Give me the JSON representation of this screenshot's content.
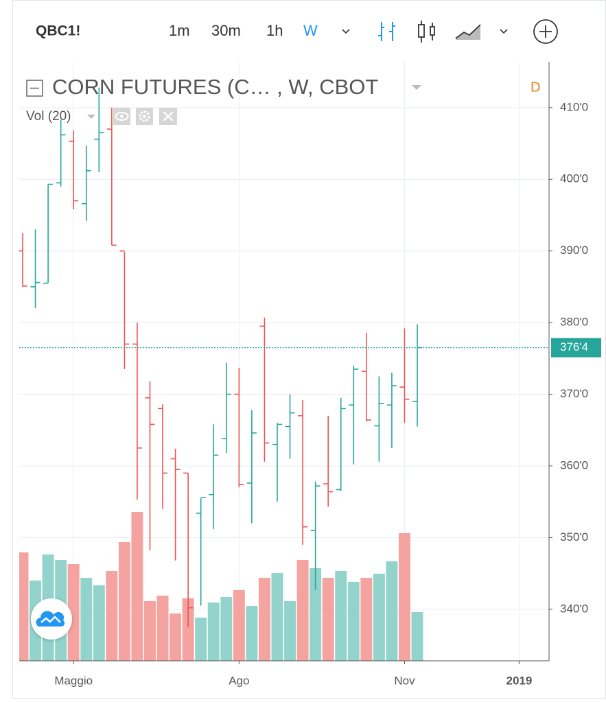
{
  "toolbar": {
    "symbol": "QBC1!",
    "intervals": [
      "1m",
      "30m",
      "1h",
      "W"
    ],
    "active_interval": "W"
  },
  "chart_data": {
    "type": "ohlc",
    "title": "CORN FUTURES (C… , W, CBOT",
    "badge": "D",
    "up_color": "#26a69a",
    "down_color": "#ef5350",
    "up_volume_color": "#92d3cb",
    "down_volume_color": "#f5a3a0",
    "ohlc": {
      "open": [
        390,
        385,
        385.5,
        399.5,
        405.3,
        396.6,
        405.6,
        407,
        390,
        377,
        369.5,
        368,
        361,
        359,
        353.4,
        356,
        363.8,
        370,
        357.6,
        379.5,
        363,
        365.5,
        367,
        351,
        357.5,
        356.7,
        368.5,
        373.2,
        365.6,
        368.5,
        371,
        369
      ],
      "high": [
        392.5,
        393,
        399.3,
        408.3,
        406.8,
        404.7,
        412.8,
        410,
        389.9,
        380,
        371.8,
        368.6,
        362.4,
        359,
        355.5,
        365.8,
        374.4,
        373.7,
        367.8,
        380.7,
        366,
        370,
        369.2,
        357.8,
        367,
        369.5,
        374,
        378.6,
        372.5,
        373,
        379.2,
        379.8
      ],
      "low": [
        385,
        382,
        385.5,
        399,
        395.8,
        394.2,
        401,
        390.8,
        373.5,
        355.3,
        348.2,
        354,
        346.8,
        337.5,
        340.5,
        351.2,
        361.8,
        357,
        352,
        360.6,
        355,
        361,
        349,
        342.7,
        354.3,
        356.5,
        360.2,
        366.2,
        360.6,
        362.5,
        366,
        365.5
      ],
      "close": [
        385.1,
        385.6,
        399.3,
        406.2,
        397,
        401.2,
        406.5,
        390.8,
        377,
        362.5,
        365.8,
        359,
        359.5,
        340.2,
        355.6,
        361.5,
        370,
        357.4,
        364.6,
        363.2,
        365.8,
        367.4,
        351.5,
        357.2,
        356.4,
        368,
        373.5,
        366.4,
        368.7,
        371.2,
        369.3,
        376.5
      ]
    },
    "volume": {
      "name": "Vol (20)",
      "values": [
        158,
        117,
        155,
        147,
        141,
        121,
        110,
        131,
        173,
        217,
        87,
        95,
        69,
        91,
        63,
        85,
        93,
        103,
        80,
        121,
        128,
        87,
        147,
        135,
        121,
        131,
        115,
        121,
        127,
        145,
        186,
        71
      ]
    },
    "last_price": {
      "value": 376.5,
      "label": "376'4"
    },
    "xlim": [
      -0.27,
      41.35
    ],
    "xticks": [
      {
        "value": 4,
        "label": "Maggio"
      },
      {
        "value": 17,
        "label": "Ago"
      },
      {
        "value": 30,
        "label": "Nov"
      },
      {
        "value": 39,
        "label": "2019"
      }
    ],
    "ylim": [
      332.8,
      416.4
    ],
    "yticks": [
      {
        "value": 340,
        "label": "340'0"
      },
      {
        "value": 350,
        "label": "350'0"
      },
      {
        "value": 360,
        "label": "360'0"
      },
      {
        "value": 370,
        "label": "370'0"
      },
      {
        "value": 380,
        "label": "380'0"
      },
      {
        "value": 390,
        "label": "390'0"
      },
      {
        "value": 400,
        "label": "400'0"
      },
      {
        "value": 410,
        "label": "410'0"
      }
    ],
    "grid": true
  }
}
